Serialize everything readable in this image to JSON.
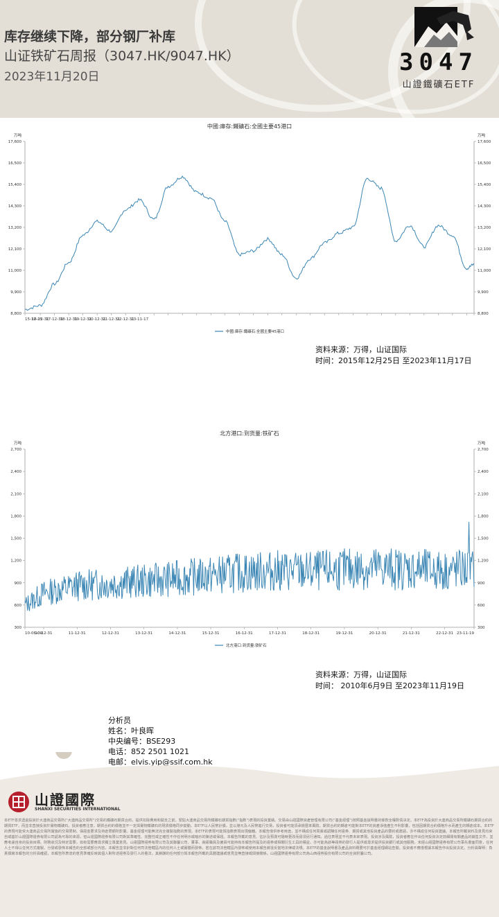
{
  "header": {
    "title": "库存继续下降，部分钢厂补库",
    "subtitle": "山证铁矿石周报（3047.HK/9047.HK）",
    "date": "2023年11月20日"
  },
  "etf_logo": {
    "code": "3047",
    "name": "山證鐵礦石ETF"
  },
  "chart_data": [
    {
      "type": "line",
      "title": "中國:庫存:鐵礦石:全國主要45港口",
      "unit_left": "万吨",
      "unit_right": "万吨",
      "legend": "中國:庫存:鐵礦石:全國主要45港口",
      "ylim": [
        8800,
        17600
      ],
      "yticks": [
        8800,
        9900,
        11000,
        12100,
        13200,
        14300,
        15400,
        16500,
        17600
      ],
      "ytick_labels": [
        "8,800",
        "9,900",
        "11,000",
        "12,100",
        "13,200",
        "14,300",
        "15,400",
        "16,500",
        "17,600"
      ],
      "xtick_labels": [
        "15-12-25",
        "16-12-31",
        "17-12-31",
        "18-12-31",
        "19-12-31",
        "20-12-31",
        "21-12-31",
        "22-12-31",
        "23-11-17"
      ],
      "x_years": [
        2015.98,
        2016.25,
        2016.5,
        2016.75,
        2017.0,
        2017.25,
        2017.5,
        2017.75,
        2018.0,
        2018.25,
        2018.5,
        2018.75,
        2019.0,
        2019.25,
        2019.5,
        2019.75,
        2020.0,
        2020.25,
        2020.5,
        2020.75,
        2021.0,
        2021.25,
        2021.5,
        2021.75,
        2022.0,
        2022.25,
        2022.5,
        2022.75,
        2023.0,
        2023.25,
        2023.5,
        2023.75,
        2023.88
      ],
      "y": [
        9000,
        9200,
        10300,
        11400,
        12800,
        13500,
        13000,
        14100,
        14600,
        13600,
        15300,
        15800,
        15000,
        14700,
        13500,
        11800,
        12000,
        12600,
        11800,
        10600,
        11600,
        12400,
        12900,
        13200,
        15700,
        15200,
        12500,
        13300,
        12200,
        13300,
        12800,
        11100,
        11300
      ],
      "x_start": 2015.98,
      "x_end": 2023.88
    },
    {
      "type": "line",
      "title": "北方港口:到货量:铁矿石",
      "unit_left": "万吨",
      "unit_right": "万吨",
      "legend": "北方港口:到货量:铁矿石",
      "ylim": [
        300,
        2700
      ],
      "yticks": [
        300,
        600,
        900,
        1200,
        1500,
        1800,
        2100,
        2400,
        2700
      ],
      "ytick_labels": [
        "300",
        "600",
        "900",
        "1,200",
        "1,500",
        "1,800",
        "2,100",
        "2,400",
        "2,700"
      ],
      "xtick_labels": [
        "10-06-09",
        "10-12-31",
        "11-12-31",
        "12-12-31",
        "13-12-31",
        "14-12-31",
        "15-12-31",
        "16-12-31",
        "17-12-31",
        "18-12-31",
        "19-12-31",
        "20-12-31",
        "21-12-31",
        "22-12-31",
        "23-11-19"
      ],
      "x_years": [
        2010.44,
        2011.0,
        2012.0,
        2013.0,
        2014.0,
        2015.0,
        2016.0,
        2017.0,
        2018.0,
        2019.0,
        2020.0,
        2021.0,
        2022.0,
        2023.0,
        2023.88
      ],
      "trend": [
        600,
        760,
        860,
        890,
        920,
        960,
        1000,
        1040,
        1060,
        1050,
        1080,
        1100,
        1080,
        1060,
        1080
      ],
      "x_start": 2010.44,
      "x_end": 2023.88
    }
  ],
  "sources": [
    {
      "line1": "资料来源：万得，山证国际",
      "line2": "时间：2015年12月25日 至2023年11月17日"
    },
    {
      "line1": "资料来源：万得，山证国际",
      "line2": "时间： 2010年6月9日 至2023年11月19日"
    }
  ],
  "analyst": {
    "role": "分析员",
    "name": "姓名：叶良晖",
    "id": "中央编号：BSE293",
    "phone": "电话：852 2501 1021",
    "email": "电邮：elvis.yip@ssif.com.hk"
  },
  "company": {
    "name": "山證國際",
    "name_en": "SHANXI SECURITIES INTERNATIONAL"
  },
  "disclaimer": "本ETF尋求透過投資於大連商品交易所(\"大連商品交易所\")交易的鐵礦石期貨合約，提供扣除費用和開支之前，緊貼大連商品交易所鐵礦石期貨指數(\"指數\")表現的投資業績。交易由山證國際資產管理有限公司(\"基金經理\")按照基金說明書的條款全權酌情決定。本ETF為投資於大連商品交易所鐵礦石期貨合約的期貨ETF，而並非直接投資於實物鐵礦石。投資者應注意，期貨合約的價格並不一定與實物鐵礦石的現貨價格同步變動。本ETF以人民幣計價，並以港元及人民幣進行交易，投資者可能須承擔匯率風險。期貨合約的轉倉可能對本ETF的資產淨值產生不利影響，包括因期貨合約價格升水而產生的轉倉成本。本ETF的表現可能受大連商品交易所實施的交易限制、保證金要求及持倉限額所影響。基金經理可能無法完全複製指數的表現，本ETF的表現可能與指數表現出現偏離。本報告僅供參考用途，並不構成任何買賣或認購任何證券、期貨或其他投資產品的要約或邀請，亦不構成任何投資建議。本報告所載資料及意見均來自或基於山證國際證券有限公司認為可靠的來源，但山證國際證券有限公司對其準確性、完整性或正確性不作任何明示或暗示的陳述或保證。本報告所載的意見、估計及預測可隨時更改而毋須另行通知。過往表現並不代表未來表現。投資涉及風險，投資者應在作出任何投資決定前細閱有關產品的銷售文件，並應考慮自身的投資目標、財務狀況及特定需要，如有需要應尋求獨立專業意見。山證國際證券有限公司及其聯屬公司、董事、高級職員及僱員可能持有本報告所提及的證券或相關衍生工具的權益，亦可能為該等證券的發行人提供或尋求提供投資銀行或其他服務。未經山證國際證券有限公司事先書面同意，任何人士不得以任何方式複製、分發或發佈本報告的全部或部分內容。本報告並非針對任何司法管轄區內的任何人士或實體而發佈，若在該司法管轄區內發佈或使用本報告將違反當地法律或法規。本ETF的基金說明書及產品資料概要可於基金經理網站查閱。投資者不應僅根據本報告作出投資決定。分析員聲明：負責撰寫本報告的分析員確認，本報告所表達的意見準確反映其個人對所述證券及發行人的看法，其薪酬的任何部分與本報告所載的具體建議或意見並無直接或間接關係。山證國際證券有限公司為山西證券股份有限公司的全資附屬公司。"
}
